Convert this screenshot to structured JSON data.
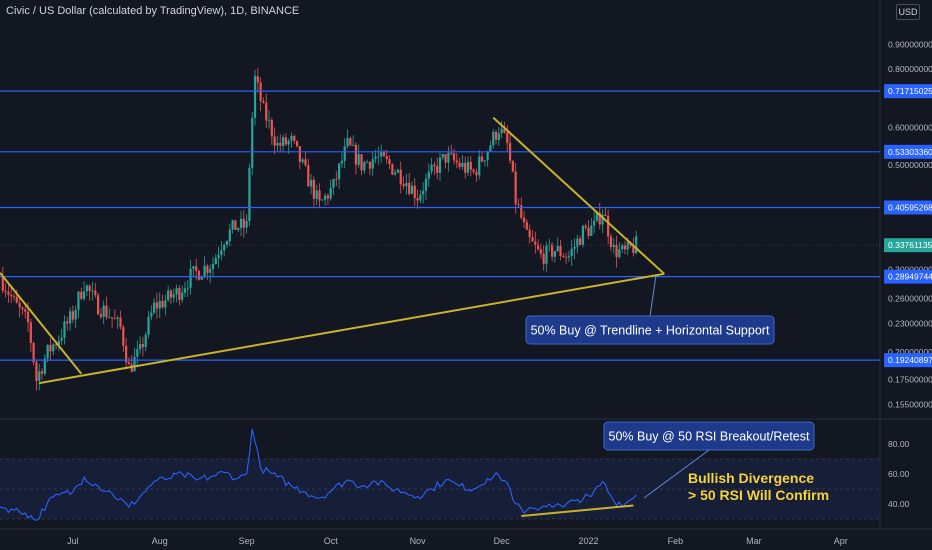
{
  "header": {
    "symbol_title": "Civic / US Dollar (calculated by TradingView), 1D, BINANCE",
    "currency": "USD"
  },
  "colors": {
    "background": "#131722",
    "candle_up": "#26a69a",
    "candle_down": "#ef5350",
    "level_line": "#2962ff",
    "trendline": "#c9b32a",
    "rsi_line": "#2962ff",
    "rsi_band": "#1a2240",
    "annotation_bg": "#1e3a8a",
    "current_price": "#26a69a",
    "bullish_text": "#f5d33a"
  },
  "chart_data": [
    {
      "type": "candlestick",
      "title": "Civic / US Dollar (calculated by TradingView), 1D, BINANCE",
      "scale": "log",
      "ylim": [
        0.145,
        1.12
      ],
      "x_range": [
        "2021-06-05",
        "2022-04-15"
      ],
      "x_ticks": [
        {
          "label": "Jul",
          "date": "2021-07-01"
        },
        {
          "label": "Aug",
          "date": "2021-08-01"
        },
        {
          "label": "Sep",
          "date": "2021-09-01"
        },
        {
          "label": "Oct",
          "date": "2021-10-01"
        },
        {
          "label": "Nov",
          "date": "2021-11-01"
        },
        {
          "label": "Dec",
          "date": "2021-12-01"
        },
        {
          "label": "2022",
          "date": "2022-01-01"
        },
        {
          "label": "Feb",
          "date": "2022-02-01"
        },
        {
          "label": "Mar",
          "date": "2022-03-01"
        },
        {
          "label": "Apr",
          "date": "2022-04-01"
        }
      ],
      "y_ticks": [
        "0.90000000",
        "0.80000000",
        "0.60000000",
        "0.50000000",
        "0.30000000",
        "0.26000000",
        "0.23000000",
        "0.20000000",
        "0.17500000",
        "0.15500000"
      ],
      "y_tick_values": [
        0.9,
        0.8,
        0.6,
        0.5,
        0.3,
        0.26,
        0.23,
        0.2,
        0.175,
        0.155
      ],
      "horizontal_levels": [
        {
          "value": 0.71715025,
          "label": "0.71715025"
        },
        {
          "value": 0.5330336,
          "label": "0.53303360"
        },
        {
          "value": 0.40595268,
          "label": "0.40595268"
        },
        {
          "value": 0.28949744,
          "label": "0.28949744"
        },
        {
          "value": 0.19240897,
          "label": "0.19240897"
        }
      ],
      "current_price": {
        "value": 0.33761135,
        "label": "0.33761135"
      },
      "price_path": [
        [
          "2021-06-05",
          0.29
        ],
        [
          "2021-06-10",
          0.255
        ],
        [
          "2021-06-15",
          0.23
        ],
        [
          "2021-06-18",
          0.175
        ],
        [
          "2021-06-22",
          0.2
        ],
        [
          "2021-06-26",
          0.215
        ],
        [
          "2021-07-01",
          0.24
        ],
        [
          "2021-07-05",
          0.28
        ],
        [
          "2021-07-09",
          0.255
        ],
        [
          "2021-07-14",
          0.24
        ],
        [
          "2021-07-18",
          0.225
        ],
        [
          "2021-07-21",
          0.185
        ],
        [
          "2021-07-25",
          0.2
        ],
        [
          "2021-07-30",
          0.25
        ],
        [
          "2021-08-04",
          0.26
        ],
        [
          "2021-08-08",
          0.27
        ],
        [
          "2021-08-12",
          0.29
        ],
        [
          "2021-08-16",
          0.3
        ],
        [
          "2021-08-20",
          0.31
        ],
        [
          "2021-08-24",
          0.35
        ],
        [
          "2021-08-28",
          0.37
        ],
        [
          "2021-09-01",
          0.37
        ],
        [
          "2021-09-04",
          0.76
        ],
        [
          "2021-09-07",
          0.65
        ],
        [
          "2021-09-12",
          0.55
        ],
        [
          "2021-09-17",
          0.56
        ],
        [
          "2021-09-22",
          0.48
        ],
        [
          "2021-09-27",
          0.41
        ],
        [
          "2021-10-02",
          0.45
        ],
        [
          "2021-10-07",
          0.55
        ],
        [
          "2021-10-12",
          0.5
        ],
        [
          "2021-10-17",
          0.52
        ],
        [
          "2021-10-22",
          0.5
        ],
        [
          "2021-10-27",
          0.47
        ],
        [
          "2021-11-01",
          0.43
        ],
        [
          "2021-11-06",
          0.48
        ],
        [
          "2021-11-11",
          0.52
        ],
        [
          "2021-11-16",
          0.5
        ],
        [
          "2021-11-21",
          0.48
        ],
        [
          "2021-11-26",
          0.54
        ],
        [
          "2021-11-30",
          0.6
        ],
        [
          "2021-12-03",
          0.55
        ],
        [
          "2021-12-06",
          0.42
        ],
        [
          "2021-12-10",
          0.35
        ],
        [
          "2021-12-15",
          0.32
        ],
        [
          "2021-12-20",
          0.33
        ],
        [
          "2021-12-25",
          0.32
        ],
        [
          "2021-12-30",
          0.36
        ],
        [
          "2022-01-03",
          0.37
        ],
        [
          "2022-01-06",
          0.4
        ],
        [
          "2022-01-10",
          0.33
        ],
        [
          "2022-01-14",
          0.325
        ],
        [
          "2022-01-18",
          0.3376
        ]
      ],
      "trendlines": [
        {
          "name": "wedge upper",
          "from": [
            "2021-11-28",
            0.63
          ],
          "to": [
            "2022-01-28",
            0.2935
          ]
        },
        {
          "name": "rising support",
          "from": [
            "2021-06-19",
            0.172
          ],
          "to": [
            "2022-01-28",
            0.2935
          ]
        },
        {
          "name": "early descending",
          "from": [
            "2021-06-05",
            0.295
          ],
          "to": [
            "2021-07-04",
            0.18
          ]
        }
      ],
      "annotations": [
        {
          "text": "50% Buy @ Trendline + Horizontal Support",
          "anchor": [
            "2022-01-25",
            0.2895
          ]
        }
      ]
    },
    {
      "type": "line",
      "pane": "RSI",
      "ylim": [
        24,
        96
      ],
      "y_ticks": [
        "80.00",
        "60.00",
        "40.00"
      ],
      "y_tick_values": [
        80,
        60,
        40
      ],
      "band": [
        30,
        70
      ],
      "midline": 50,
      "rsi_path": [
        [
          "2021-06-05",
          38
        ],
        [
          "2021-06-10",
          36
        ],
        [
          "2021-06-14",
          34
        ],
        [
          "2021-06-18",
          29
        ],
        [
          "2021-06-22",
          41
        ],
        [
          "2021-06-26",
          46
        ],
        [
          "2021-07-01",
          48
        ],
        [
          "2021-07-05",
          58
        ],
        [
          "2021-07-10",
          52
        ],
        [
          "2021-07-15",
          47
        ],
        [
          "2021-07-21",
          38
        ],
        [
          "2021-07-25",
          45
        ],
        [
          "2021-07-30",
          55
        ],
        [
          "2021-08-04",
          57
        ],
        [
          "2021-08-09",
          60
        ],
        [
          "2021-08-14",
          56
        ],
        [
          "2021-08-19",
          58
        ],
        [
          "2021-08-24",
          61
        ],
        [
          "2021-08-29",
          57
        ],
        [
          "2021-09-01",
          60
        ],
        [
          "2021-09-03",
          90
        ],
        [
          "2021-09-06",
          64
        ],
        [
          "2021-09-12",
          58
        ],
        [
          "2021-09-17",
          52
        ],
        [
          "2021-09-22",
          48
        ],
        [
          "2021-09-27",
          44
        ],
        [
          "2021-10-02",
          50
        ],
        [
          "2021-10-07",
          56
        ],
        [
          "2021-10-12",
          52
        ],
        [
          "2021-10-17",
          55
        ],
        [
          "2021-10-22",
          51
        ],
        [
          "2021-10-27",
          48
        ],
        [
          "2021-11-01",
          45
        ],
        [
          "2021-11-06",
          50
        ],
        [
          "2021-11-11",
          56
        ],
        [
          "2021-11-16",
          52
        ],
        [
          "2021-11-21",
          50
        ],
        [
          "2021-11-26",
          57
        ],
        [
          "2021-11-30",
          59
        ],
        [
          "2021-12-03",
          54
        ],
        [
          "2021-12-06",
          40
        ],
        [
          "2021-12-09",
          34
        ],
        [
          "2021-12-13",
          37
        ],
        [
          "2021-12-18",
          40
        ],
        [
          "2021-12-23",
          38
        ],
        [
          "2021-12-28",
          43
        ],
        [
          "2022-01-02",
          45
        ],
        [
          "2022-01-06",
          55
        ],
        [
          "2022-01-10",
          42
        ],
        [
          "2022-01-14",
          40
        ],
        [
          "2022-01-18",
          46
        ]
      ],
      "divergence_line": {
        "from": [
          "2021-12-08",
          32
        ],
        "to": [
          "2022-01-17",
          39
        ]
      },
      "annotations": [
        {
          "text": "50% Buy @ 50 RSI Breakout/Retest",
          "anchor": [
            "2022-01-24",
            44
          ]
        },
        {
          "text": "Bullish Divergence",
          "anchor": [
            "2022-01-20",
            57
          ]
        },
        {
          "text": "> 50 RSI Will Confirm",
          "anchor": [
            "2022-01-22",
            47
          ]
        }
      ]
    }
  ]
}
